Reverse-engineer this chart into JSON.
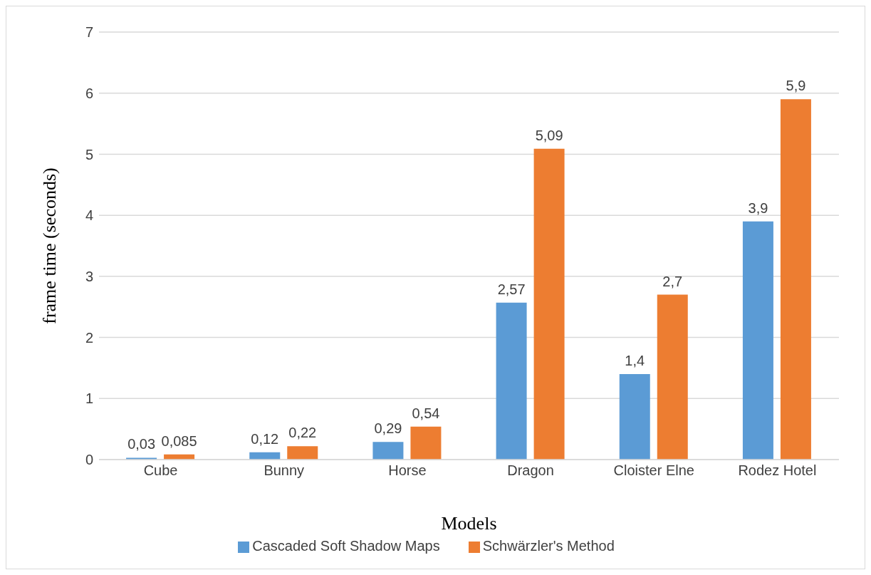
{
  "chart_data": {
    "type": "bar",
    "xlabel": "Models",
    "ylabel": "frame time (seconds)",
    "categories": [
      "Cube",
      "Bunny",
      "Horse",
      "Dragon",
      "Cloister Elne",
      "Rodez Hotel"
    ],
    "series": [
      {
        "name": "Cascaded Soft Shadow Maps",
        "color": "#5b9bd5",
        "values": [
          0.03,
          0.12,
          0.29,
          2.57,
          1.4,
          3.9
        ],
        "value_labels": [
          "0,03",
          "0,12",
          "0,29",
          "2,57",
          "1,4",
          "3,9"
        ]
      },
      {
        "name": "Schwärzler's Method",
        "color": "#ed7d31",
        "values": [
          0.085,
          0.22,
          0.54,
          5.09,
          2.7,
          5.9
        ],
        "value_labels": [
          "0,085",
          "0,22",
          "0,54",
          "5,09",
          "2,7",
          "5,9"
        ]
      }
    ],
    "ylim": [
      0,
      7
    ],
    "yticks": [
      0,
      1,
      2,
      3,
      4,
      5,
      6,
      7
    ],
    "grid": "y",
    "legend": "bottom"
  }
}
